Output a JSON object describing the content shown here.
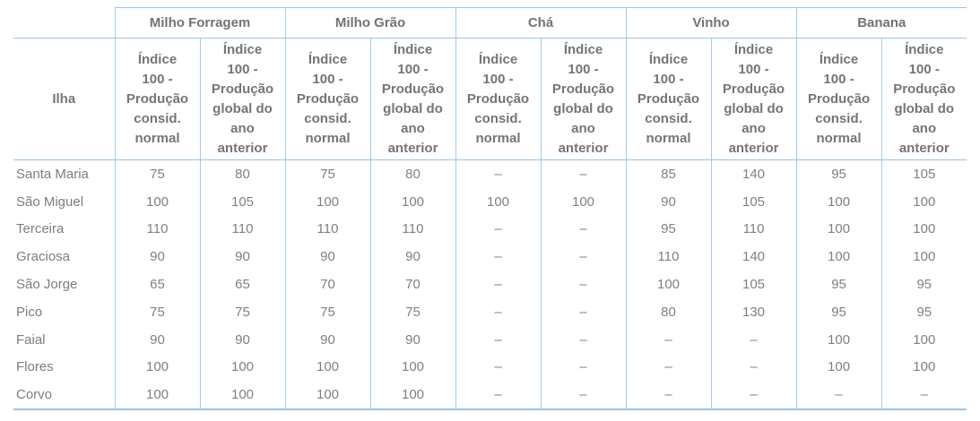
{
  "table": {
    "row_header_label": "Ilha",
    "groups": [
      {
        "label": "Milho Forragem"
      },
      {
        "label": "Milho Grão"
      },
      {
        "label": "Chá"
      },
      {
        "label": "Vinho"
      },
      {
        "label": "Banana"
      }
    ],
    "subheader_normal": "Índice\n100 -\nProdução\nconsid.\nnormal",
    "subheader_previous": "Índice\n100 -\nProdução\nglobal do\nano\nanterior",
    "missing_value_symbol": "–",
    "rows": [
      {
        "label": "Santa Maria",
        "values": [
          "75",
          "80",
          "75",
          "80",
          "–",
          "–",
          "85",
          "140",
          "95",
          "105"
        ]
      },
      {
        "label": "São Miguel",
        "values": [
          "100",
          "105",
          "100",
          "100",
          "100",
          "100",
          "90",
          "105",
          "100",
          "100"
        ]
      },
      {
        "label": "Terceira",
        "values": [
          "110",
          "110",
          "110",
          "110",
          "–",
          "–",
          "95",
          "110",
          "100",
          "100"
        ]
      },
      {
        "label": "Graciosa",
        "values": [
          "90",
          "90",
          "90",
          "90",
          "–",
          "–",
          "110",
          "140",
          "100",
          "100"
        ]
      },
      {
        "label": "São Jorge",
        "values": [
          "65",
          "65",
          "70",
          "70",
          "–",
          "–",
          "100",
          "105",
          "95",
          "95"
        ]
      },
      {
        "label": "Pico",
        "values": [
          "75",
          "75",
          "75",
          "75",
          "–",
          "–",
          "80",
          "130",
          "95",
          "95"
        ]
      },
      {
        "label": "Faial",
        "values": [
          "90",
          "90",
          "90",
          "90",
          "–",
          "–",
          "–",
          "–",
          "100",
          "100"
        ]
      },
      {
        "label": "Flores",
        "values": [
          "100",
          "100",
          "100",
          "100",
          "–",
          "–",
          "–",
          "–",
          "100",
          "100"
        ]
      },
      {
        "label": "Corvo",
        "values": [
          "100",
          "100",
          "100",
          "100",
          "–",
          "–",
          "–",
          "–",
          "–",
          "–"
        ]
      }
    ]
  },
  "colors": {
    "border_horizontal": "#9cc2e5",
    "border_vertical": "#aac9e7",
    "header_text": "#737373",
    "body_text": "#808080",
    "background": "#ffffff"
  },
  "chart_data": {
    "type": "table",
    "title": "",
    "row_header": "Ilha",
    "column_groups": [
      "Milho Forragem",
      "Milho Grão",
      "Chá",
      "Vinho",
      "Banana"
    ],
    "sub_columns": [
      "Índice 100 - Produção consid. normal",
      "Índice 100 - Produção global do ano anterior"
    ],
    "rows": [
      {
        "label": "Santa Maria",
        "values": [
          75,
          80,
          75,
          80,
          null,
          null,
          85,
          140,
          95,
          105
        ]
      },
      {
        "label": "São Miguel",
        "values": [
          100,
          105,
          100,
          100,
          100,
          100,
          90,
          105,
          100,
          100
        ]
      },
      {
        "label": "Terceira",
        "values": [
          110,
          110,
          110,
          110,
          null,
          null,
          95,
          110,
          100,
          100
        ]
      },
      {
        "label": "Graciosa",
        "values": [
          90,
          90,
          90,
          90,
          null,
          null,
          110,
          140,
          100,
          100
        ]
      },
      {
        "label": "São Jorge",
        "values": [
          65,
          65,
          70,
          70,
          null,
          null,
          100,
          105,
          95,
          95
        ]
      },
      {
        "label": "Pico",
        "values": [
          75,
          75,
          75,
          75,
          null,
          null,
          80,
          130,
          95,
          95
        ]
      },
      {
        "label": "Faial",
        "values": [
          90,
          90,
          90,
          90,
          null,
          null,
          null,
          null,
          100,
          100
        ]
      },
      {
        "label": "Flores",
        "values": [
          100,
          100,
          100,
          100,
          null,
          null,
          null,
          null,
          100,
          100
        ]
      },
      {
        "label": "Corvo",
        "values": [
          100,
          100,
          100,
          100,
          null,
          null,
          null,
          null,
          null,
          null
        ]
      }
    ]
  }
}
